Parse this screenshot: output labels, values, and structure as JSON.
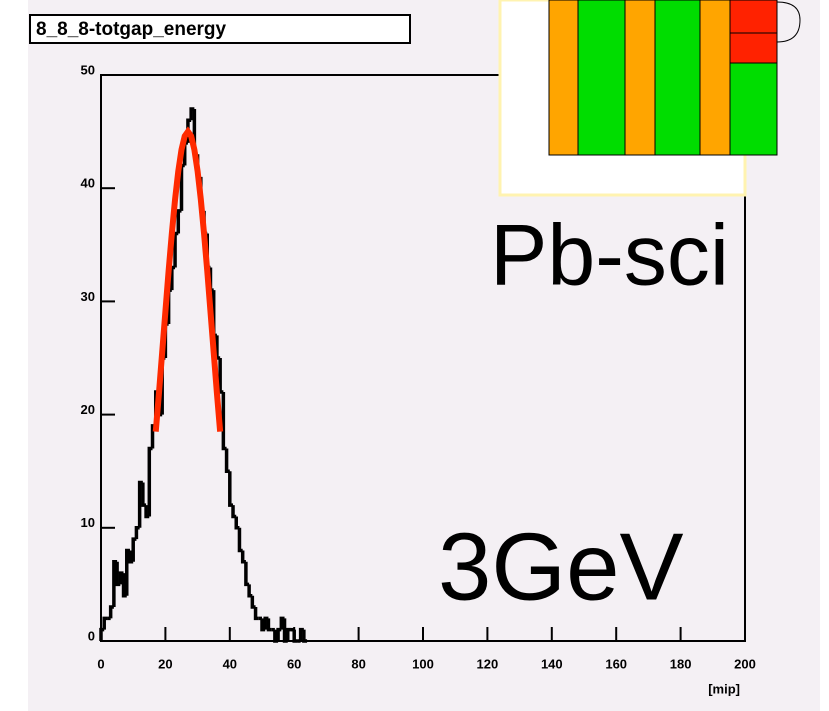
{
  "chart_data": {
    "type": "histogram",
    "title": "8_8_8-totgap_energy",
    "xlabel": "[mip]",
    "annotations": [
      "Pb-sci",
      "3GeV"
    ],
    "color": "#000000",
    "bins": [
      0,
      1,
      2,
      3,
      4,
      5,
      6,
      7,
      8,
      9,
      10,
      11,
      12,
      13,
      14,
      15,
      16,
      17,
      18,
      19,
      20,
      21,
      22,
      23,
      24,
      25,
      26,
      27,
      28,
      29,
      30,
      31,
      32,
      33,
      34,
      35,
      36,
      37,
      38,
      39,
      40,
      41,
      42,
      43,
      44,
      45,
      46,
      47,
      48,
      49,
      50,
      51,
      52,
      53,
      54,
      55,
      56,
      57,
      58,
      59,
      60,
      61,
      62,
      63,
      64
    ],
    "values": [
      1,
      2,
      2,
      3,
      7,
      5,
      6,
      4,
      8,
      7,
      9,
      10,
      14,
      12,
      11,
      17,
      19,
      22,
      20,
      25,
      28,
      31,
      33,
      36,
      38,
      42,
      44,
      46,
      47,
      43,
      41,
      38,
      36,
      33,
      31,
      27,
      25,
      22,
      17,
      15,
      12,
      11,
      10,
      8,
      7,
      5,
      4,
      3,
      2,
      2,
      1,
      2,
      1,
      1,
      0,
      1,
      2,
      0,
      1,
      1,
      0,
      0,
      1,
      0
    ],
    "fit": {
      "color": "#ff2a00",
      "x": [
        17,
        18,
        19,
        20,
        21,
        22,
        23,
        24,
        25,
        26,
        27,
        28,
        29,
        30,
        31,
        32,
        33,
        34,
        35,
        36,
        37
      ],
      "values": [
        18.5,
        21.9,
        25.5,
        29.1,
        32.7,
        36.0,
        39.0,
        41.5,
        43.4,
        44.6,
        45,
        44.6,
        43.4,
        41.5,
        39.0,
        36.0,
        32.7,
        29.1,
        25.5,
        21.9,
        18.5
      ]
    },
    "xlim": [
      0,
      200
    ],
    "xticks": [
      0,
      20,
      40,
      60,
      80,
      100,
      120,
      140,
      160,
      180,
      200
    ],
    "ylim": [
      0,
      50
    ],
    "yticks": [
      0,
      10,
      20,
      30,
      40,
      50
    ]
  }
}
